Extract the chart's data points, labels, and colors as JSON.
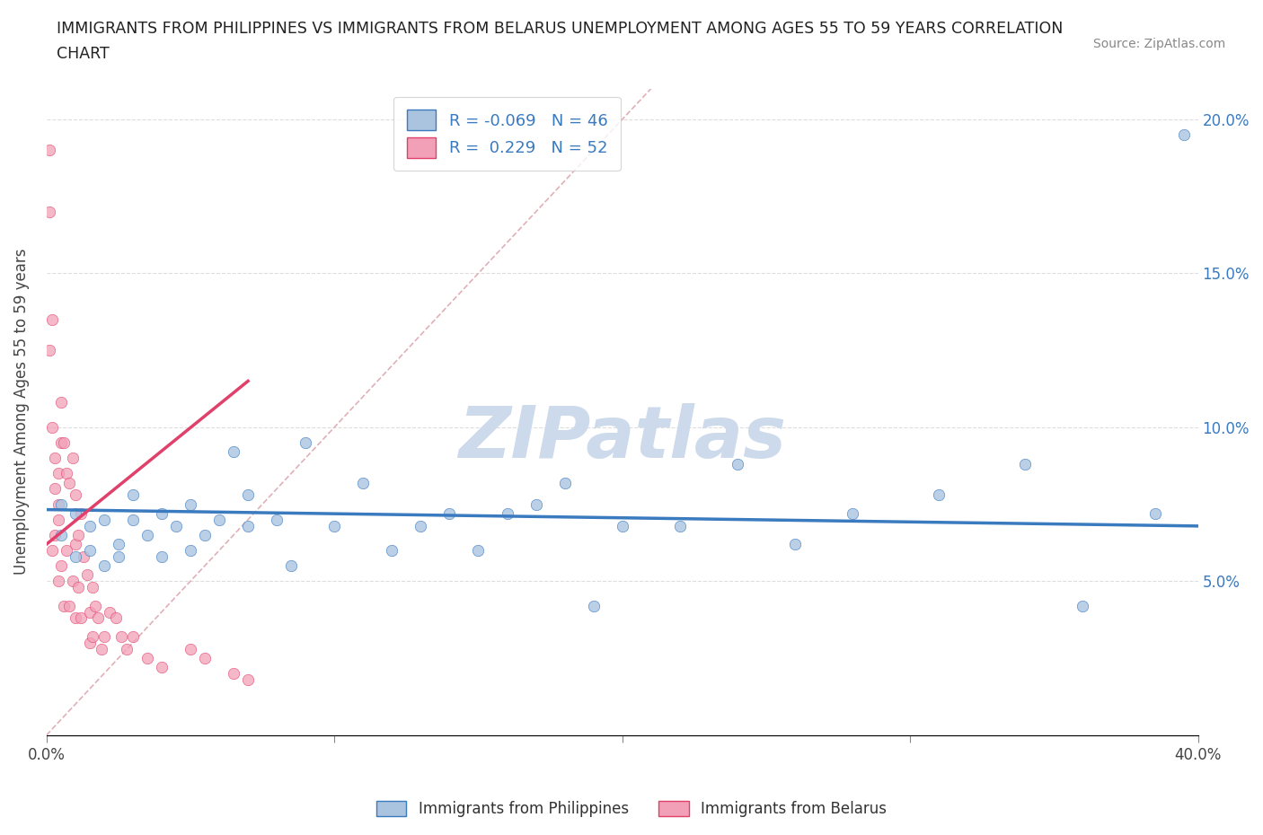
{
  "title": "IMMIGRANTS FROM PHILIPPINES VS IMMIGRANTS FROM BELARUS UNEMPLOYMENT AMONG AGES 55 TO 59 YEARS CORRELATION\nCHART",
  "source_text": "Source: ZipAtlas.com",
  "ylabel": "Unemployment Among Ages 55 to 59 years",
  "xlim": [
    0.0,
    0.4
  ],
  "ylim": [
    0.0,
    0.21
  ],
  "R_philippines": -0.069,
  "N_philippines": 46,
  "R_belarus": 0.229,
  "N_belarus": 52,
  "color_philippines": "#aac4e0",
  "color_belarus": "#f2a0b8",
  "trendline_philippines_color": "#3a7abf",
  "trendline_belarus_color": "#e0406a",
  "diagonal_line_color": "#e0b0b8",
  "watermark_color": "#ccdaec",
  "philippines_x": [
    0.005,
    0.005,
    0.01,
    0.01,
    0.015,
    0.015,
    0.02,
    0.02,
    0.025,
    0.025,
    0.03,
    0.03,
    0.035,
    0.04,
    0.04,
    0.045,
    0.05,
    0.05,
    0.055,
    0.06,
    0.065,
    0.07,
    0.07,
    0.08,
    0.085,
    0.09,
    0.1,
    0.11,
    0.12,
    0.13,
    0.14,
    0.15,
    0.16,
    0.17,
    0.18,
    0.19,
    0.2,
    0.22,
    0.24,
    0.26,
    0.28,
    0.31,
    0.34,
    0.36,
    0.385,
    0.395
  ],
  "philippines_y": [
    0.065,
    0.075,
    0.058,
    0.072,
    0.06,
    0.068,
    0.055,
    0.07,
    0.062,
    0.058,
    0.07,
    0.078,
    0.065,
    0.072,
    0.058,
    0.068,
    0.075,
    0.06,
    0.065,
    0.07,
    0.092,
    0.068,
    0.078,
    0.07,
    0.055,
    0.095,
    0.068,
    0.082,
    0.06,
    0.068,
    0.072,
    0.06,
    0.072,
    0.075,
    0.082,
    0.042,
    0.068,
    0.068,
    0.088,
    0.062,
    0.072,
    0.078,
    0.088,
    0.042,
    0.072,
    0.195
  ],
  "belarus_x": [
    0.001,
    0.001,
    0.001,
    0.002,
    0.002,
    0.002,
    0.003,
    0.003,
    0.003,
    0.004,
    0.004,
    0.004,
    0.004,
    0.005,
    0.005,
    0.005,
    0.006,
    0.006,
    0.007,
    0.007,
    0.008,
    0.008,
    0.009,
    0.009,
    0.01,
    0.01,
    0.01,
    0.011,
    0.011,
    0.012,
    0.012,
    0.013,
    0.014,
    0.015,
    0.015,
    0.016,
    0.016,
    0.017,
    0.018,
    0.019,
    0.02,
    0.022,
    0.024,
    0.026,
    0.028,
    0.03,
    0.035,
    0.04,
    0.05,
    0.055,
    0.065,
    0.07
  ],
  "belarus_y": [
    0.19,
    0.17,
    0.125,
    0.135,
    0.1,
    0.06,
    0.09,
    0.08,
    0.065,
    0.085,
    0.075,
    0.07,
    0.05,
    0.108,
    0.095,
    0.055,
    0.095,
    0.042,
    0.085,
    0.06,
    0.082,
    0.042,
    0.09,
    0.05,
    0.078,
    0.062,
    0.038,
    0.065,
    0.048,
    0.072,
    0.038,
    0.058,
    0.052,
    0.04,
    0.03,
    0.048,
    0.032,
    0.042,
    0.038,
    0.028,
    0.032,
    0.04,
    0.038,
    0.032,
    0.028,
    0.032,
    0.025,
    0.022,
    0.028,
    0.025,
    0.02,
    0.018
  ]
}
